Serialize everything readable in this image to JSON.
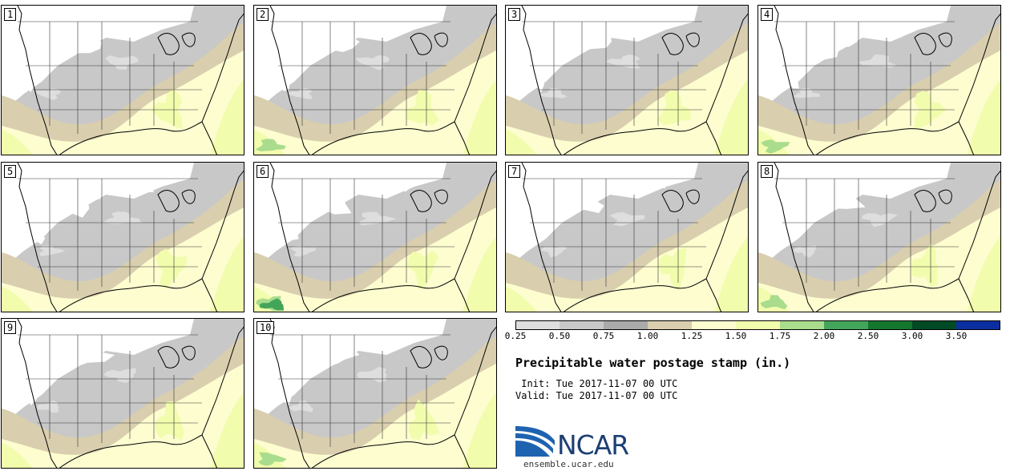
{
  "panels": [
    {
      "label": "1"
    },
    {
      "label": "2"
    },
    {
      "label": "3"
    },
    {
      "label": "4"
    },
    {
      "label": "5"
    },
    {
      "label": "6"
    },
    {
      "label": "7"
    },
    {
      "label": "8"
    },
    {
      "label": "9"
    },
    {
      "label": "10"
    }
  ],
  "colorbar": {
    "ticks": [
      "0.25",
      "0.50",
      "0.75",
      "1.00",
      "1.25",
      "1.50",
      "1.75",
      "2.00",
      "2.50",
      "3.00",
      "3.50"
    ],
    "colors": [
      "#dedede",
      "#c8c8c8",
      "#aaaaaa",
      "#d9ceae",
      "#fdfdd0",
      "#f1fcad",
      "#a9dc8c",
      "#43a55a",
      "#13782e",
      "#004a25",
      "#0b2ea0"
    ],
    "background_fill": "#c8c8c8",
    "dry_fill": "#ffffff"
  },
  "title": "Precipitable water postage stamp (in.)",
  "init_line": " Init: Tue 2017-11-07 00 UTC",
  "valid_line": "Valid: Tue 2017-11-07 00 UTC",
  "logo": {
    "text": "NCAR",
    "url": "ensemble.ucar.edu",
    "color": "#1d3f74",
    "swoosh_color": "#1e63b0"
  }
}
